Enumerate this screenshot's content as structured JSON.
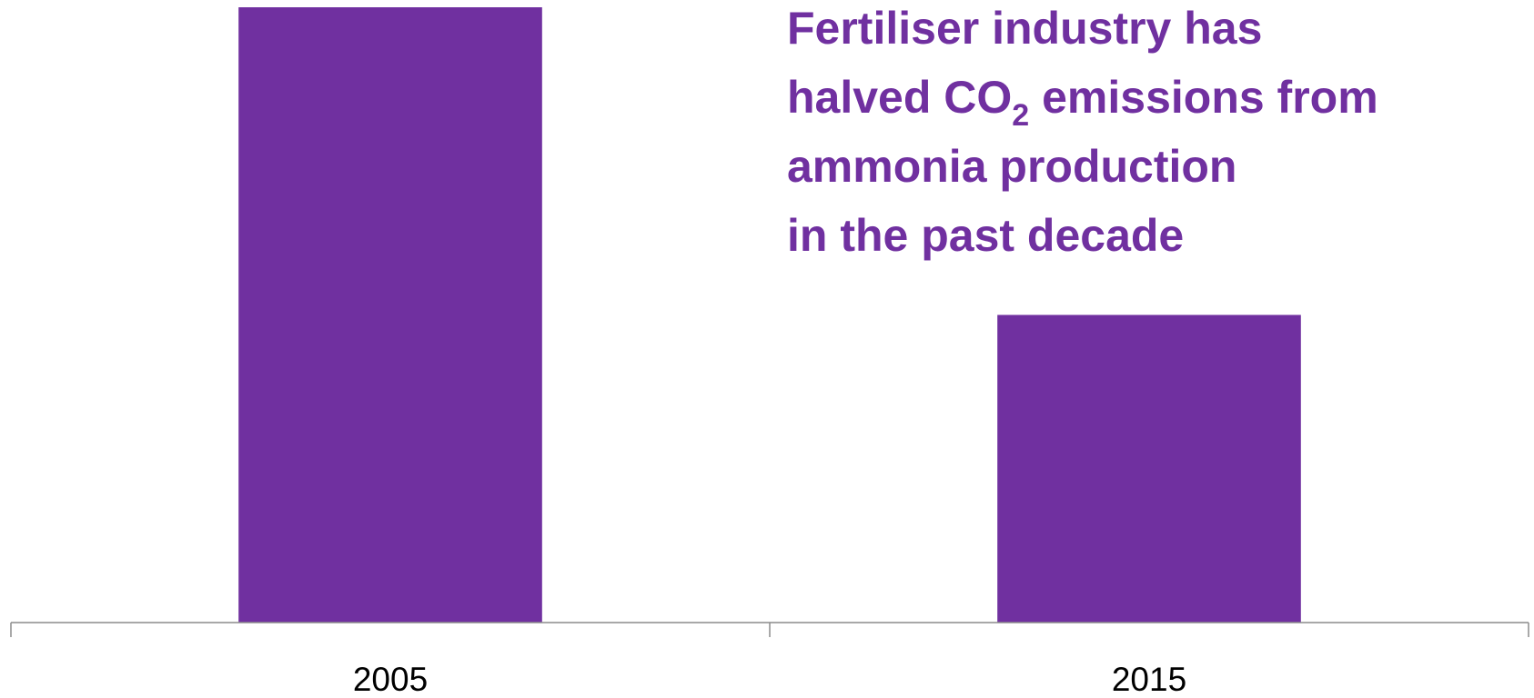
{
  "chart_data": {
    "type": "bar",
    "title": [
      "Fertiliser industry has",
      "halved CO",
      "2",
      " emissions from",
      "ammonia production",
      "in the past decade"
    ],
    "categories": [
      "2005",
      "2015"
    ],
    "values": [
      100,
      50
    ],
    "color": "#7030a0",
    "ylim": [
      0,
      100
    ]
  }
}
